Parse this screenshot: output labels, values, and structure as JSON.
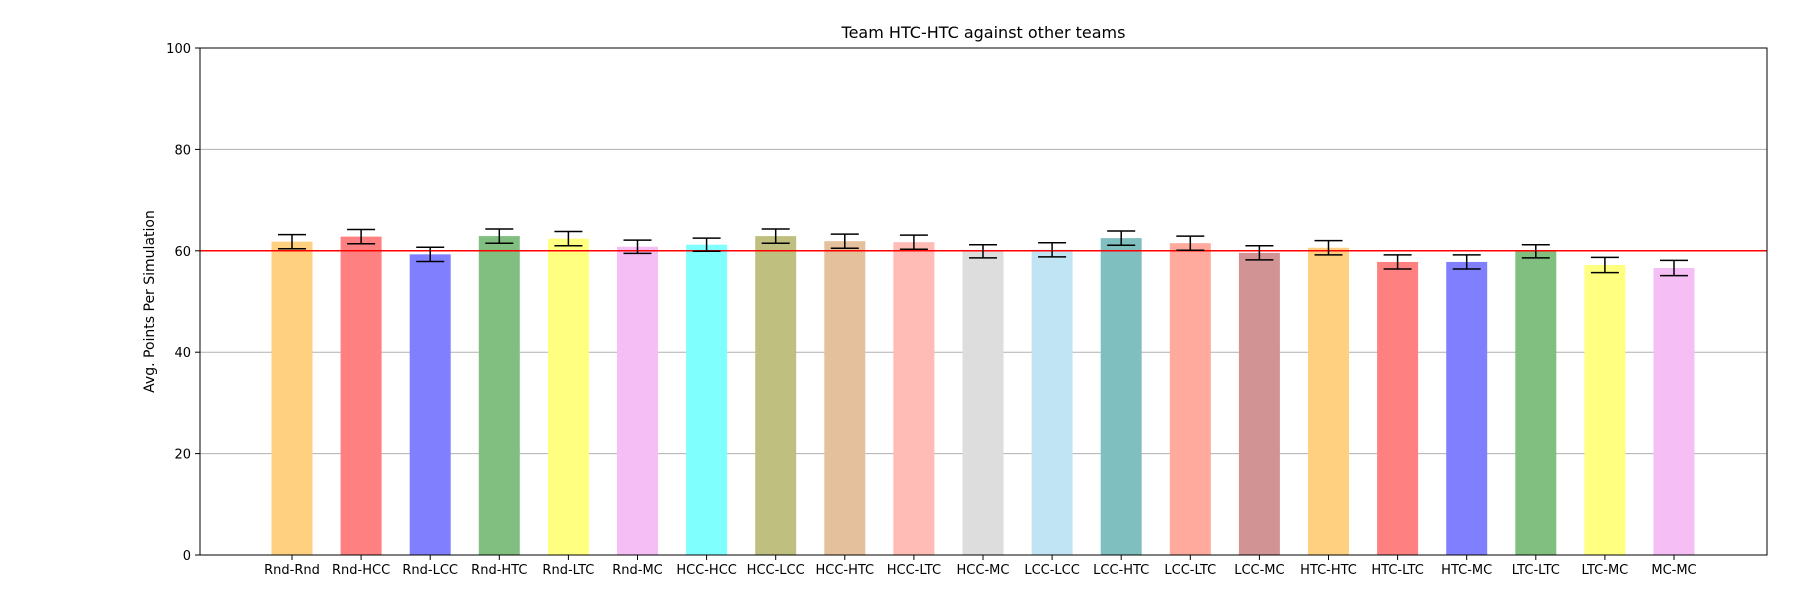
{
  "chart_data": {
    "type": "bar",
    "title": "Team HTC-HTC against other teams",
    "xlabel": "",
    "ylabel": "Avg. Points Per Simulation",
    "ylim": [
      0,
      100
    ],
    "yticks": [
      0,
      20,
      40,
      60,
      80,
      100
    ],
    "grid": "y",
    "reference_line": {
      "value": 60,
      "color": "#ff0000"
    },
    "categories": [
      "Rnd-Rnd",
      "Rnd-HCC",
      "Rnd-LCC",
      "Rnd-HTC",
      "Rnd-LTC",
      "Rnd-MC",
      "HCC-HCC",
      "HCC-LCC",
      "HCC-HTC",
      "HCC-LTC",
      "HCC-MC",
      "LCC-LCC",
      "LCC-HTC",
      "LCC-LTC",
      "LCC-MC",
      "HTC-HTC",
      "HTC-LTC",
      "HTC-MC",
      "LTC-LTC",
      "LTC-MC",
      "MC-MC"
    ],
    "values": [
      61.8,
      62.8,
      59.3,
      62.9,
      62.4,
      60.8,
      61.2,
      62.9,
      61.9,
      61.7,
      59.9,
      60.2,
      62.5,
      61.5,
      59.6,
      60.6,
      57.8,
      57.8,
      59.9,
      57.2,
      56.6
    ],
    "errors": [
      1.4,
      1.4,
      1.4,
      1.4,
      1.4,
      1.3,
      1.3,
      1.4,
      1.4,
      1.4,
      1.3,
      1.4,
      1.4,
      1.4,
      1.4,
      1.4,
      1.4,
      1.4,
      1.3,
      1.5,
      1.5
    ],
    "colors": [
      "#fed080",
      "#ff8080",
      "#8080ff",
      "#80bf80",
      "#ffff80",
      "#f5bef5",
      "#80ffff",
      "#bfbf80",
      "#e4c19c",
      "#ffbbb5",
      "#dddddd",
      "#c0e4f4",
      "#80bfbf",
      "#ffaa9d",
      "#d19393",
      "#fed080",
      "#ff8080",
      "#8080ff",
      "#80bf80",
      "#ffff80",
      "#f5bef5"
    ]
  }
}
